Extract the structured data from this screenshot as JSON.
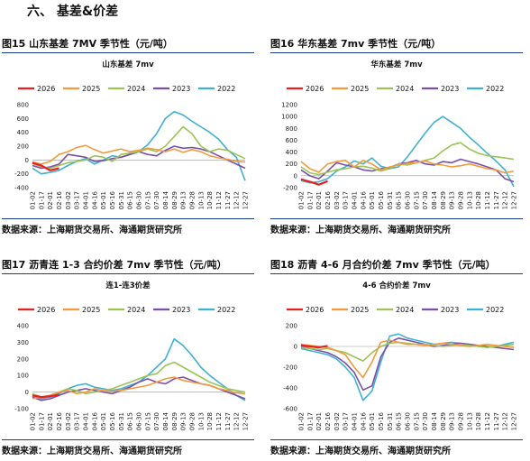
{
  "section_title": "六、  基差&价差",
  "source_text": "数据来源：上海期货交易所、海通期货研究所",
  "x_ticks": [
    "01-02",
    "01-17",
    "02-01",
    "02-16",
    "03-02",
    "03-17",
    "04-01",
    "04-16",
    "05-01",
    "05-16",
    "05-31",
    "06-15",
    "06-30",
    "07-15",
    "07-30",
    "08-14",
    "08-29",
    "09-13",
    "09-28",
    "10-13",
    "10-28",
    "11-12",
    "11-27",
    "12-12",
    "12-27"
  ],
  "colors": {
    "2026": "#e8201f",
    "2025": "#f39a3b",
    "2024": "#9cc356",
    "2023": "#7b4fa6",
    "2022": "#3fb1d2"
  },
  "panels": [
    {
      "fig_label": "图15  山东基差 7MV 季节性（元/吨）",
      "chart_data": {
        "type": "line",
        "title": "山东基差 7mv",
        "ylim": [
          -400,
          800
        ],
        "yticks": [
          -400,
          -200,
          0,
          200,
          400,
          600,
          800
        ],
        "series": [
          {
            "name": "2026",
            "values": [
              -40,
              -80,
              -150,
              -120
            ]
          },
          {
            "name": "2025",
            "values": [
              -30,
              -60,
              -20,
              80,
              120,
              180,
              210,
              150,
              100,
              130,
              160,
              120,
              140,
              170,
              150,
              120,
              160,
              110,
              150,
              120,
              60,
              30,
              10,
              -20,
              -30
            ]
          },
          {
            "name": "2024",
            "values": [
              -50,
              -100,
              -120,
              -80,
              -40,
              -20,
              0,
              60,
              40,
              -20,
              80,
              100,
              120,
              160,
              120,
              200,
              340,
              480,
              380,
              200,
              120,
              160,
              140,
              80,
              20
            ]
          },
          {
            "name": "2023",
            "values": [
              -80,
              -120,
              -100,
              -60,
              80,
              60,
              40,
              -20,
              -10,
              20,
              40,
              80,
              120,
              80,
              60,
              140,
              200,
              170,
              180,
              160,
              120,
              60,
              0,
              -60,
              -120
            ]
          },
          {
            "name": "2022",
            "values": [
              -120,
              -200,
              -180,
              -150,
              -80,
              -20,
              20,
              -60,
              0,
              60,
              40,
              80,
              120,
              220,
              380,
              600,
              700,
              650,
              560,
              480,
              400,
              300,
              150,
              40,
              -300
            ]
          }
        ]
      }
    },
    {
      "fig_label": "图16  华东基差 7mv  季节性（元/吨）",
      "chart_data": {
        "type": "line",
        "title": "华东基差 7mv",
        "ylim": [
          -200,
          1200
        ],
        "yticks": [
          -200,
          0,
          200,
          400,
          600,
          800,
          1000,
          1200
        ],
        "series": [
          {
            "name": "2026",
            "values": [
              -60,
              -100,
              -150,
              -90
            ]
          },
          {
            "name": "2025",
            "values": [
              240,
              120,
              60,
              200,
              240,
              260,
              150,
              260,
              200,
              100,
              150,
              180,
              210,
              220,
              250,
              200,
              180,
              150,
              170,
              200,
              160,
              120,
              100,
              50,
              80
            ]
          },
          {
            "name": "2024",
            "values": [
              150,
              50,
              20,
              60,
              100,
              120,
              150,
              160,
              130,
              80,
              120,
              200,
              180,
              220,
              260,
              300,
              420,
              520,
              560,
              450,
              380,
              340,
              320,
              300,
              280
            ]
          },
          {
            "name": "2023",
            "values": [
              100,
              0,
              -50,
              80,
              220,
              180,
              150,
              100,
              80,
              120,
              140,
              200,
              220,
              260,
              200,
              180,
              240,
              220,
              280,
              240,
              200,
              150,
              100,
              -50,
              -100
            ]
          },
          {
            "name": "2022",
            "values": [
              -80,
              -120,
              -100,
              -50,
              80,
              150,
              250,
              200,
              300,
              160,
              120,
              150,
              320,
              520,
              720,
              900,
              1000,
              900,
              800,
              650,
              520,
              380,
              250,
              100,
              -180
            ]
          }
        ]
      }
    },
    {
      "fig_label": "图17  沥青连 1-3 合约价差 7mv 季节性（元/吨）",
      "chart_data": {
        "type": "line",
        "title": "连1-连3价差",
        "ylim": [
          -100,
          400
        ],
        "yticks": [
          -100,
          0,
          100,
          200,
          300,
          400
        ],
        "series": [
          {
            "name": "2026",
            "values": [
              -20,
              -30,
              -25,
              -15
            ]
          },
          {
            "name": "2025",
            "values": [
              -40,
              -30,
              -20,
              0,
              10,
              -10,
              0,
              20,
              10,
              5,
              10,
              20,
              30,
              40,
              60,
              80,
              90,
              70,
              60,
              50,
              40,
              20,
              10,
              -5,
              -10
            ]
          },
          {
            "name": "2024",
            "values": [
              -10,
              -30,
              -20,
              0,
              20,
              10,
              -10,
              0,
              10,
              20,
              40,
              60,
              80,
              100,
              110,
              160,
              180,
              150,
              120,
              90,
              60,
              40,
              20,
              10,
              0
            ]
          },
          {
            "name": "2023",
            "values": [
              -30,
              -50,
              -40,
              -20,
              0,
              10,
              20,
              10,
              0,
              -10,
              10,
              30,
              60,
              80,
              60,
              50,
              80,
              90,
              70,
              50,
              40,
              20,
              0,
              -20,
              -40
            ]
          },
          {
            "name": "2022",
            "values": [
              -20,
              -40,
              -30,
              -10,
              20,
              40,
              50,
              30,
              20,
              10,
              20,
              40,
              60,
              100,
              150,
              200,
              320,
              280,
              220,
              150,
              100,
              60,
              20,
              -20,
              -50
            ]
          }
        ]
      }
    },
    {
      "fig_label": "图18  沥青 4-6 月合约价差 7mv  季节性（元/吨）",
      "chart_data": {
        "type": "line",
        "title": "4-6 合约价差 7mv",
        "ylim": [
          -600,
          200
        ],
        "yticks": [
          -600,
          -400,
          -200,
          0,
          200
        ],
        "series": [
          {
            "name": "2026",
            "values": [
              10,
              0,
              -10,
              5
            ]
          },
          {
            "name": "2025",
            "values": [
              20,
              10,
              0,
              -10,
              -40,
              -80,
              -200,
              -300,
              -150,
              40,
              60,
              40,
              20,
              20,
              10,
              20,
              30,
              20,
              10,
              0,
              10,
              20,
              10,
              0,
              -10
            ]
          },
          {
            "name": "2024",
            "values": [
              -10,
              -20,
              -30,
              -20,
              -40,
              -60,
              -100,
              -140,
              -60,
              0,
              30,
              40,
              30,
              20,
              20,
              10,
              0,
              10,
              20,
              10,
              0,
              -10,
              0,
              10,
              20
            ]
          },
          {
            "name": "2023",
            "values": [
              0,
              -20,
              -40,
              -60,
              -100,
              -160,
              -250,
              -420,
              -380,
              -100,
              40,
              80,
              60,
              40,
              20,
              0,
              10,
              20,
              30,
              20,
              10,
              0,
              -10,
              -20,
              -30
            ]
          },
          {
            "name": "2022",
            "values": [
              -20,
              -40,
              -60,
              -80,
              -120,
              -200,
              -300,
              -520,
              -430,
              -150,
              100,
              120,
              80,
              60,
              40,
              20,
              30,
              40,
              30,
              20,
              0,
              -10,
              0,
              20,
              40
            ]
          }
        ]
      }
    }
  ]
}
